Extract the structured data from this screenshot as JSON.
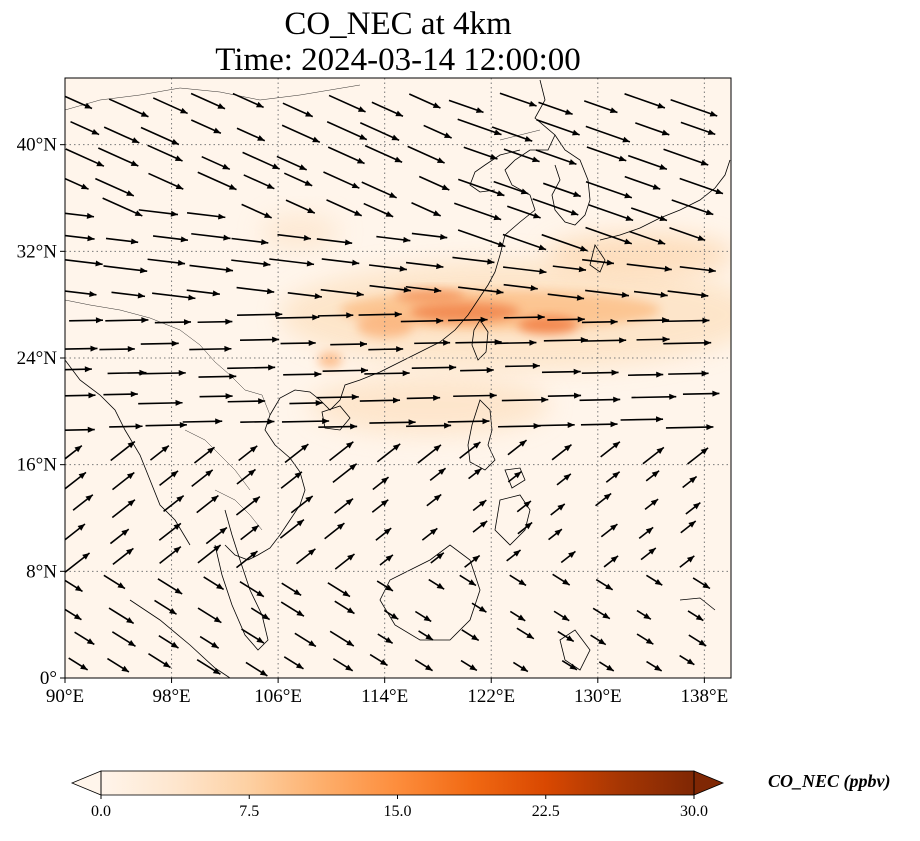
{
  "title_line1": "CO_NEC at 4km",
  "title_line2": "Time: 2024-03-14 12:00:00",
  "map": {
    "variable": "CO_NEC",
    "level": "4km",
    "lon_range": [
      90,
      140
    ],
    "lat_range": [
      0,
      45
    ],
    "lon_ticks": [
      {
        "value": 90,
        "label": "90°E"
      },
      {
        "value": 98,
        "label": "98°E"
      },
      {
        "value": 106,
        "label": "106°E"
      },
      {
        "value": 114,
        "label": "114°E"
      },
      {
        "value": 122,
        "label": "122°E"
      },
      {
        "value": 130,
        "label": "130°E"
      },
      {
        "value": 138,
        "label": "138°E"
      }
    ],
    "lat_ticks": [
      {
        "value": 0,
        "label": "0°"
      },
      {
        "value": 8,
        "label": "8°N"
      },
      {
        "value": 16,
        "label": "16°N"
      },
      {
        "value": 24,
        "label": "24°N"
      },
      {
        "value": 32,
        "label": "32°N"
      },
      {
        "value": 40,
        "label": "40°N"
      }
    ],
    "gridlines": "dotted",
    "plume_cores": [
      {
        "lon": 119.5,
        "lat": 27.5,
        "value": 18
      },
      {
        "lon": 126.0,
        "lat": 26.5,
        "value": 16
      },
      {
        "lon": 117.0,
        "lat": 28.5,
        "value": 13
      },
      {
        "lon": 113.5,
        "lat": 26.5,
        "value": 8
      },
      {
        "lon": 134.0,
        "lat": 31.0,
        "value": 7
      },
      {
        "lon": 110.5,
        "lat": 23.5,
        "value": 6
      }
    ]
  },
  "colorbar": {
    "title": "CO_NEC (ppbv)",
    "min": 0,
    "max": 30,
    "extend": "both",
    "cmap_stops": [
      "#fff5eb",
      "#fee6ce",
      "#fdd0a2",
      "#fdae6b",
      "#fd8d3c",
      "#f16913",
      "#d94801",
      "#a63603",
      "#7f2704"
    ],
    "ticks": [
      {
        "value": 0,
        "label": "0.0"
      },
      {
        "value": 7.5,
        "label": "7.5"
      },
      {
        "value": 15,
        "label": "15.0"
      },
      {
        "value": 22.5,
        "label": "22.5"
      },
      {
        "value": 30,
        "label": "30.0"
      }
    ]
  },
  "colors": {
    "arrow": "#000000",
    "coast": "#000000",
    "grid": "#7a7a7a",
    "background": "#fff5eb"
  }
}
